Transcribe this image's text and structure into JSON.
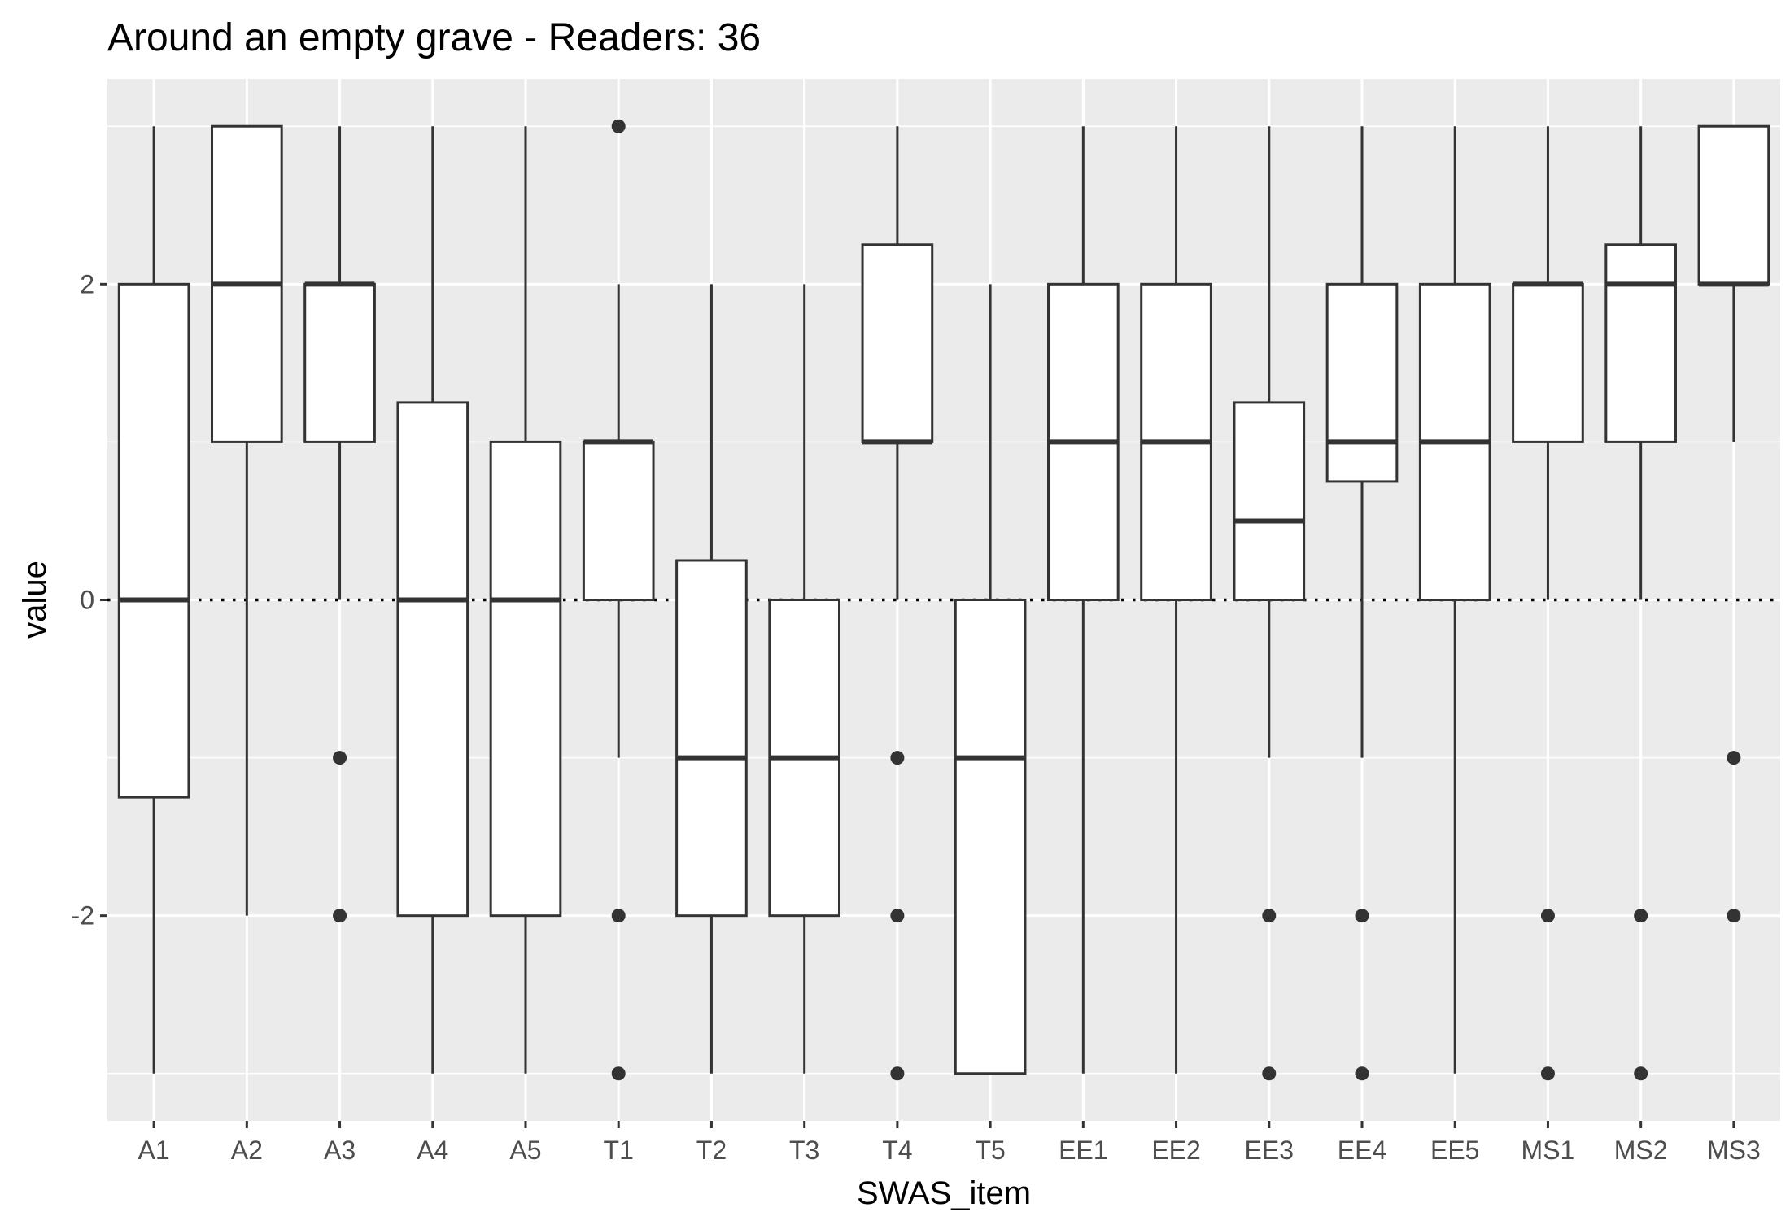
{
  "chart_data": {
    "type": "boxplot",
    "title": "Around an empty grave - Readers: 36",
    "xlabel": "SWAS_item",
    "ylabel": "value",
    "ylim": [
      -3.3,
      3.3
    ],
    "y_ticks": [
      -2,
      0,
      2
    ],
    "reference_line": {
      "y": 0,
      "style": "dotted"
    },
    "grid": true,
    "legend": "none",
    "colors": {
      "panel": "#ebebeb",
      "grid": "#ffffff",
      "box_fill": "#ffffff",
      "stroke": "#333333",
      "tick_label": "#4d4d4d"
    },
    "categories": [
      "A1",
      "A2",
      "A3",
      "A4",
      "A5",
      "T1",
      "T2",
      "T3",
      "T4",
      "T5",
      "EE1",
      "EE2",
      "EE3",
      "EE4",
      "EE5",
      "MS1",
      "MS2",
      "MS3"
    ],
    "boxes": [
      {
        "name": "A1",
        "low": -3,
        "q1": -1.25,
        "median": 0,
        "q3": 2,
        "high": 3,
        "outliers": []
      },
      {
        "name": "A2",
        "low": -2,
        "q1": 1,
        "median": 2,
        "q3": 3,
        "high": 3,
        "outliers": []
      },
      {
        "name": "A3",
        "low": 0,
        "q1": 1,
        "median": 2,
        "q3": 2,
        "high": 3,
        "outliers": [
          -1,
          -2
        ]
      },
      {
        "name": "A4",
        "low": -3,
        "q1": -2,
        "median": 0,
        "q3": 1.25,
        "high": 3,
        "outliers": []
      },
      {
        "name": "A5",
        "low": -3,
        "q1": -2,
        "median": 0,
        "q3": 1,
        "high": 3,
        "outliers": []
      },
      {
        "name": "T1",
        "low": -1,
        "q1": 0,
        "median": 1,
        "q3": 1,
        "high": 2,
        "outliers": [
          3,
          -2,
          -3
        ]
      },
      {
        "name": "T2",
        "low": -3,
        "q1": -2,
        "median": -1,
        "q3": 0.25,
        "high": 2,
        "outliers": []
      },
      {
        "name": "T3",
        "low": -3,
        "q1": -2,
        "median": -1,
        "q3": 0,
        "high": 2,
        "outliers": []
      },
      {
        "name": "T4",
        "low": 0,
        "q1": 1,
        "median": 1,
        "q3": 2.25,
        "high": 3,
        "outliers": [
          -1,
          -2,
          -3
        ]
      },
      {
        "name": "T5",
        "low": -3,
        "q1": -3,
        "median": -1,
        "q3": 0,
        "high": 2,
        "outliers": []
      },
      {
        "name": "EE1",
        "low": -3,
        "q1": 0,
        "median": 1,
        "q3": 2,
        "high": 3,
        "outliers": []
      },
      {
        "name": "EE2",
        "low": -3,
        "q1": 0,
        "median": 1,
        "q3": 2,
        "high": 3,
        "outliers": []
      },
      {
        "name": "EE3",
        "low": -1,
        "q1": 0,
        "median": 0.5,
        "q3": 1.25,
        "high": 3,
        "outliers": [
          -2,
          -3
        ]
      },
      {
        "name": "EE4",
        "low": -1,
        "q1": 0.75,
        "median": 1,
        "q3": 2,
        "high": 3,
        "outliers": [
          -2,
          -3
        ]
      },
      {
        "name": "EE5",
        "low": -3,
        "q1": 0,
        "median": 1,
        "q3": 2,
        "high": 3,
        "outliers": []
      },
      {
        "name": "MS1",
        "low": 0,
        "q1": 1,
        "median": 2,
        "q3": 2,
        "high": 3,
        "outliers": [
          -2,
          -3
        ]
      },
      {
        "name": "MS2",
        "low": 0,
        "q1": 1,
        "median": 2,
        "q3": 2.25,
        "high": 3,
        "outliers": [
          -2,
          -3
        ]
      },
      {
        "name": "MS3",
        "low": 1,
        "q1": 2,
        "median": 2,
        "q3": 3,
        "high": 3,
        "outliers": [
          -1,
          -2
        ]
      }
    ]
  }
}
